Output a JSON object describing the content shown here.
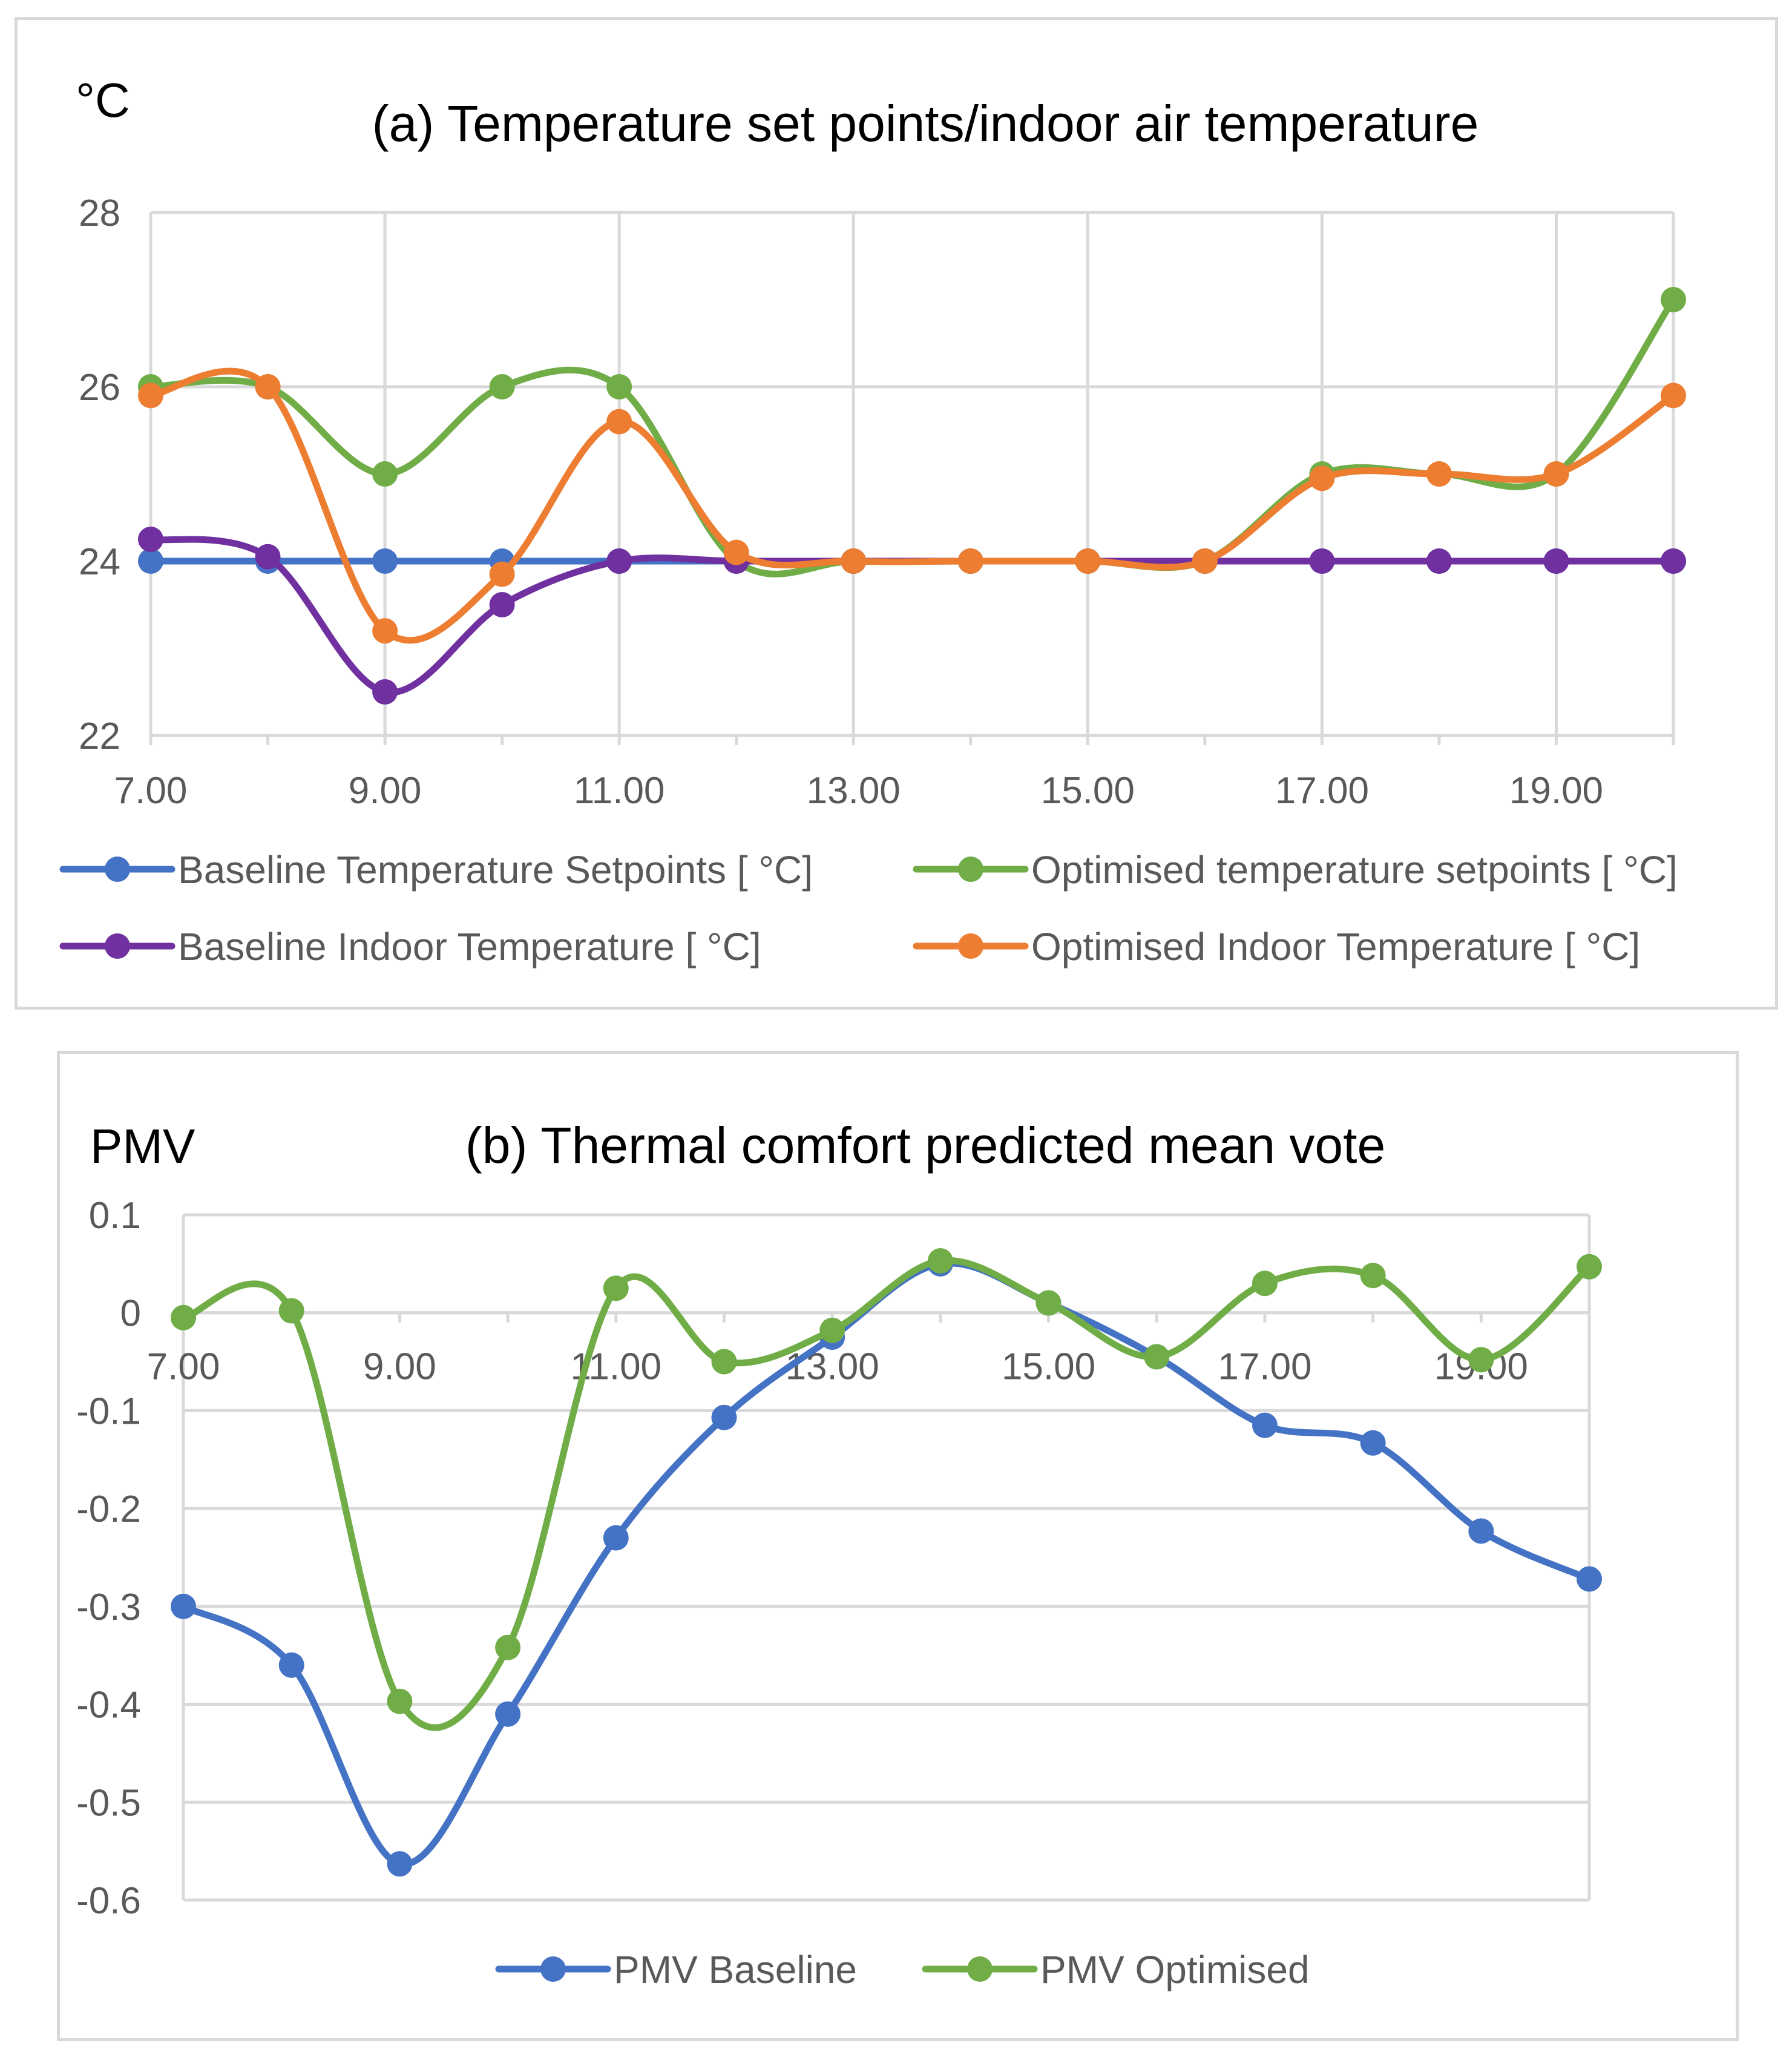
{
  "chart_data": [
    {
      "type": "line",
      "title": "(a) Temperature set points/indoor air temperature",
      "ylabel": "°C",
      "xlabel": "",
      "x": [
        7,
        8,
        9,
        10,
        11,
        12,
        13,
        14,
        15,
        16,
        17,
        18,
        19,
        20
      ],
      "x_ticks": [
        "7.00",
        "9.00",
        "11.00",
        "13.00",
        "15.00",
        "17.00",
        "19.00"
      ],
      "x_tick_values": [
        7,
        9,
        11,
        13,
        15,
        17,
        19
      ],
      "xlim": [
        7,
        20
      ],
      "y_ticks": [
        "28",
        "26",
        "24",
        "22"
      ],
      "y_tick_values": [
        28,
        26,
        24,
        22
      ],
      "ylim": [
        22,
        28
      ],
      "grid": true,
      "series": [
        {
          "name": "Baseline Temperature Setpoints [ °C]",
          "color": "#4472C4",
          "values": [
            24,
            24,
            24,
            24,
            24,
            24,
            24,
            24,
            24,
            24,
            24,
            24,
            24,
            24
          ]
        },
        {
          "name": "Optimised temperature setpoints [ °C]",
          "color": "#70AD47",
          "values": [
            26,
            26,
            25,
            26,
            26,
            24,
            24,
            24,
            24,
            24,
            25,
            25,
            25,
            27
          ]
        },
        {
          "name": "Baseline Indoor Temperature [ °C]",
          "color": "#7030A0",
          "values": [
            24.25,
            24.05,
            22.5,
            23.5,
            24.0,
            24.0,
            24,
            24,
            24,
            24,
            24,
            24,
            24,
            24
          ]
        },
        {
          "name": "Optimised Indoor Temperature [ °C]",
          "color": "#ED7D31",
          "values": [
            25.9,
            26.0,
            23.2,
            23.85,
            25.6,
            24.1,
            24,
            24,
            24,
            24,
            24.95,
            25.0,
            25.0,
            25.9
          ]
        }
      ],
      "legend": "bottom"
    },
    {
      "type": "line",
      "title": "(b) Thermal comfort predicted mean vote",
      "ylabel": "PMV",
      "xlabel": "",
      "x": [
        7,
        8,
        9,
        10,
        11,
        12,
        13,
        14,
        15,
        16,
        17,
        18,
        19,
        20
      ],
      "x_ticks": [
        "7.00",
        "9.00",
        "11.00",
        "13.00",
        "15.00",
        "17.00",
        "19.00"
      ],
      "x_tick_values": [
        7,
        9,
        11,
        13,
        15,
        17,
        19
      ],
      "xlim": [
        7,
        20
      ],
      "y_ticks": [
        "0.1",
        "0",
        "-0.1",
        "-0.2",
        "-0.3",
        "-0.4",
        "-0.5",
        "-0.6"
      ],
      "y_tick_values": [
        0.1,
        0,
        -0.1,
        -0.2,
        -0.3,
        -0.4,
        -0.5,
        -0.6
      ],
      "ylim": [
        -0.6,
        0.1
      ],
      "grid": true,
      "series": [
        {
          "name": "PMV Baseline",
          "color": "#4472C4",
          "values": [
            -0.3,
            -0.36,
            -0.563,
            -0.41,
            -0.23,
            -0.107,
            -0.025,
            0.05,
            0.01,
            -0.045,
            -0.115,
            -0.133,
            -0.223,
            -0.272
          ]
        },
        {
          "name": "PMV Optimised",
          "color": "#70AD47",
          "values": [
            -0.005,
            0.002,
            -0.397,
            -0.342,
            0.025,
            -0.05,
            -0.018,
            0.053,
            0.01,
            -0.045,
            0.03,
            0.038,
            -0.048,
            0.047
          ]
        }
      ],
      "legend": "bottom"
    }
  ]
}
